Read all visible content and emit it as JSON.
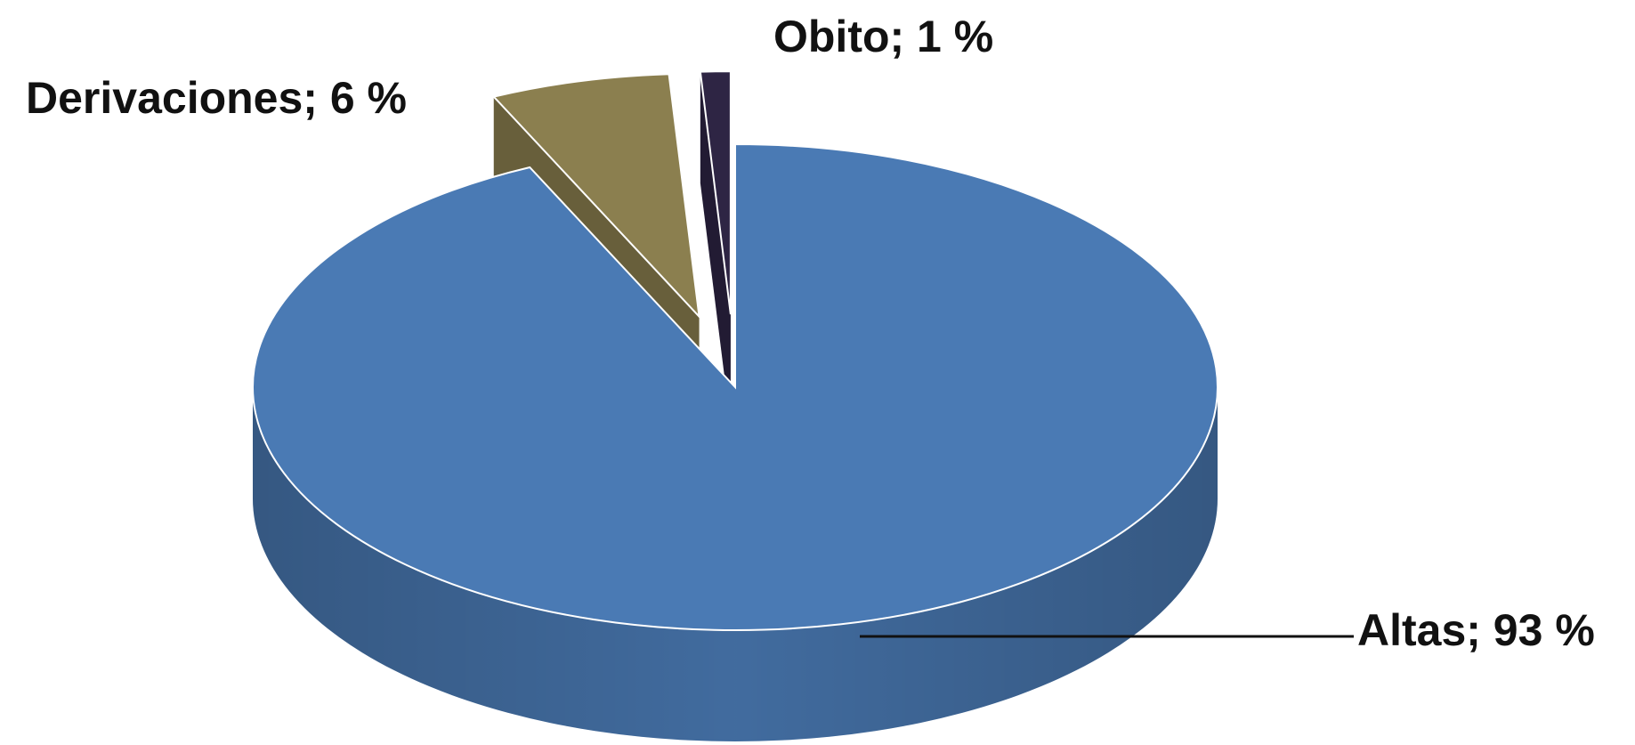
{
  "chart_data": {
    "type": "pie3d",
    "categories": [
      "Altas",
      "Derivaciones",
      "Obito"
    ],
    "values": [
      93,
      6,
      1
    ],
    "value_labels": [
      "Altas; 93 %",
      "Derivaciones; 6 %",
      "Obito; 1 %"
    ],
    "colors": [
      "#4a7ab4",
      "#8b7f4f",
      "#2e2544"
    ]
  }
}
